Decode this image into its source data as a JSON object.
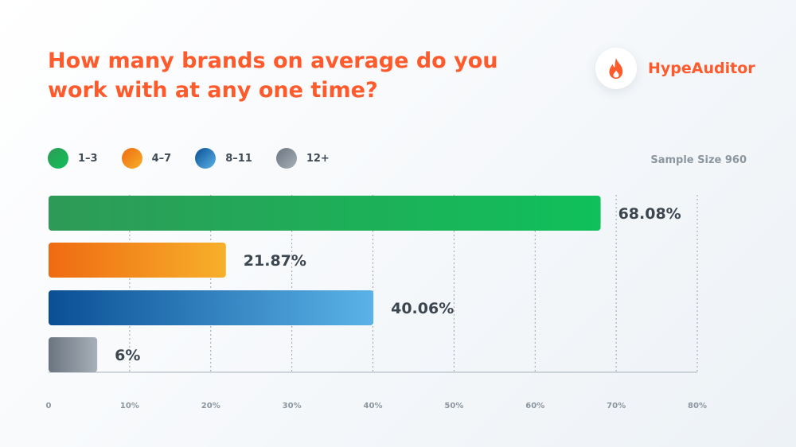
{
  "header": {
    "title": "How many brands on average do you work with at any one time?",
    "brand": "HypeAuditor",
    "brand_icon": "flame-icon",
    "brand_color": "#ff5a2c"
  },
  "sample": "Sample Size 960",
  "chart_data": {
    "type": "bar",
    "orientation": "horizontal",
    "categories": [
      "1–3",
      "4–7",
      "8–11",
      "12+"
    ],
    "values": [
      68.08,
      21.87,
      40.06,
      6
    ],
    "value_labels": [
      "68.08%",
      "21.87%",
      "40.06%",
      "6%"
    ],
    "xlim": [
      0,
      80
    ],
    "x_ticks": [
      0,
      10,
      20,
      30,
      40,
      50,
      60,
      70,
      80
    ],
    "x_tick_labels": [
      "0",
      "10%",
      "20%",
      "30%",
      "40%",
      "50%",
      "60%",
      "70%",
      "80%"
    ],
    "grid": true,
    "legend_position": "top-left",
    "colors": [
      [
        "#2e9a57",
        "#10c05a"
      ],
      [
        "#ef6a12",
        "#f7b02a"
      ],
      [
        "#0a4f94",
        "#5ab3e8"
      ],
      [
        "#6b7580",
        "#a7b0b8"
      ]
    ]
  }
}
